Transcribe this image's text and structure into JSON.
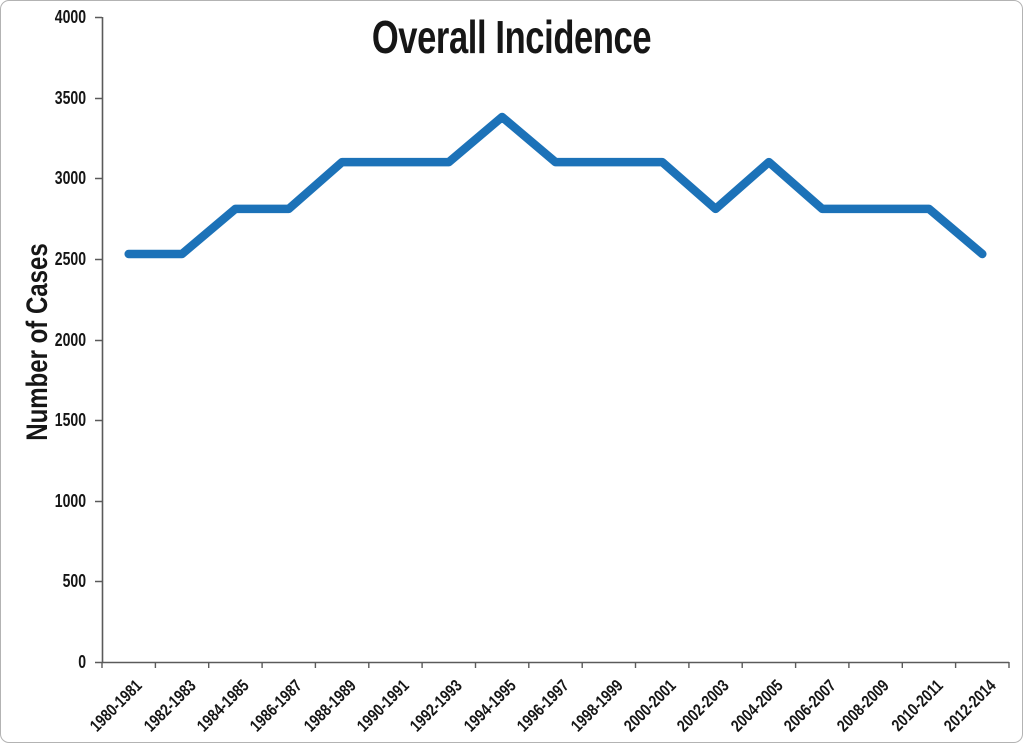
{
  "chart_data": {
    "type": "line",
    "title": "Overall Incidence",
    "ylabel": "Number of Cases",
    "xlabel": "",
    "categories": [
      "1980-1981",
      "1982-1983",
      "1984-1985",
      "1986-1987",
      "1988-1989",
      "1990-1991",
      "1992-1993",
      "1994-1995",
      "1996-1997",
      "1998-1999",
      "2000-2001",
      "2002-2003",
      "2004-2005",
      "2006-2007",
      "2008-2009",
      "2010-2011",
      "2012-2014"
    ],
    "values": [
      2530,
      2530,
      2810,
      2810,
      3100,
      3100,
      3100,
      3380,
      3100,
      3100,
      3100,
      2810,
      3100,
      2810,
      2810,
      2810,
      2530
    ],
    "ylim": [
      0,
      4000
    ],
    "y_ticks": [
      0,
      500,
      1000,
      1500,
      2000,
      2500,
      3000,
      3500,
      4000
    ],
    "grid": "off",
    "legend": "none",
    "x_tick_rotation_deg": 45,
    "line_color": "#1c72b8",
    "axis_color": "#5a5a5a",
    "text_color": "#161616"
  }
}
